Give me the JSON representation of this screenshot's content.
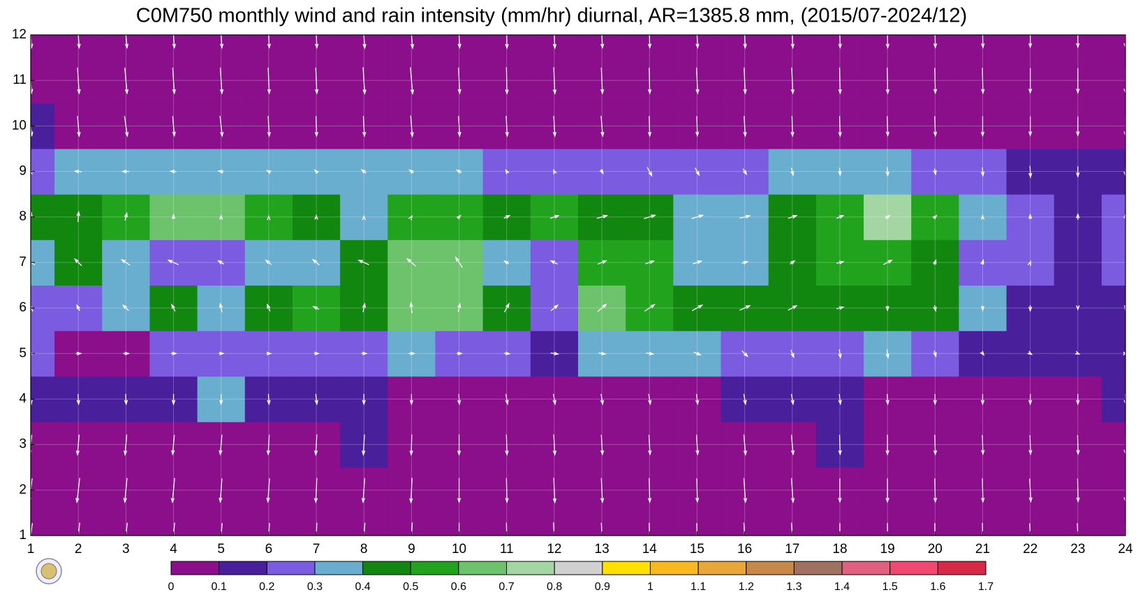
{
  "chart_data": {
    "type": "contour",
    "title": "C0M750 monthly wind and rain intensity (mm/hr) diurnal, AR=1385.8 mm, (2015/07-2024/12)",
    "x": [
      1,
      2,
      3,
      4,
      5,
      6,
      7,
      8,
      9,
      10,
      11,
      12,
      13,
      14,
      15,
      16,
      17,
      18,
      19,
      20,
      21,
      22,
      23,
      24
    ],
    "y": [
      1,
      2,
      3,
      4,
      5,
      6,
      7,
      8,
      9,
      10,
      11,
      12
    ],
    "xlim": [
      1,
      24
    ],
    "ylim": [
      1,
      12
    ],
    "xticks": [
      1,
      2,
      3,
      4,
      5,
      6,
      7,
      8,
      9,
      10,
      11,
      12,
      13,
      14,
      15,
      16,
      17,
      18,
      19,
      20,
      21,
      22,
      23,
      24
    ],
    "yticks": [
      1,
      2,
      3,
      4,
      5,
      6,
      7,
      8,
      9,
      10,
      11,
      12
    ],
    "grid": true,
    "values": [
      [
        0.05,
        0.05,
        0.05,
        0.05,
        0.05,
        0.05,
        0.05,
        0.05,
        0.05,
        0.05,
        0.05,
        0.05,
        0.05,
        0.05,
        0.05,
        0.05,
        0.05,
        0.05,
        0.05,
        0.05,
        0.05,
        0.05,
        0.05,
        0.05
      ],
      [
        0.05,
        0.05,
        0.05,
        0.05,
        0.05,
        0.05,
        0.05,
        0.05,
        0.05,
        0.05,
        0.05,
        0.05,
        0.05,
        0.05,
        0.05,
        0.05,
        0.05,
        0.05,
        0.05,
        0.05,
        0.05,
        0.05,
        0.05,
        0.05
      ],
      [
        0.08,
        0.08,
        0.08,
        0.08,
        0.07,
        0.08,
        0.09,
        0.12,
        0.08,
        0.07,
        0.07,
        0.07,
        0.07,
        0.07,
        0.07,
        0.07,
        0.08,
        0.1,
        0.07,
        0.07,
        0.07,
        0.07,
        0.06,
        0.07
      ],
      [
        0.15,
        0.12,
        0.1,
        0.15,
        0.3,
        0.15,
        0.15,
        0.12,
        0.08,
        0.08,
        0.07,
        0.07,
        0.08,
        0.08,
        0.08,
        0.12,
        0.15,
        0.12,
        0.08,
        0.08,
        0.07,
        0.06,
        0.08,
        0.12
      ],
      [
        0.2,
        0.05,
        0.05,
        0.2,
        0.2,
        0.2,
        0.2,
        0.25,
        0.3,
        0.25,
        0.2,
        0.15,
        0.3,
        0.3,
        0.35,
        0.25,
        0.25,
        0.25,
        0.3,
        0.2,
        0.15,
        0.12,
        0.12,
        0.15
      ],
      [
        0.2,
        0.25,
        0.3,
        0.4,
        0.3,
        0.45,
        0.5,
        0.45,
        0.65,
        0.6,
        0.4,
        0.2,
        0.65,
        0.55,
        0.45,
        0.45,
        0.45,
        0.45,
        0.45,
        0.45,
        0.35,
        0.15,
        0.12,
        0.15
      ],
      [
        0.3,
        0.4,
        0.35,
        0.2,
        0.2,
        0.35,
        0.35,
        0.4,
        0.6,
        0.6,
        0.35,
        0.2,
        0.5,
        0.5,
        0.35,
        0.3,
        0.45,
        0.55,
        0.5,
        0.4,
        0.25,
        0.2,
        0.15,
        0.22
      ],
      [
        0.4,
        0.45,
        0.5,
        0.65,
        0.65,
        0.55,
        0.45,
        0.35,
        0.5,
        0.5,
        0.4,
        0.5,
        0.45,
        0.4,
        0.35,
        0.35,
        0.45,
        0.55,
        0.75,
        0.5,
        0.3,
        0.2,
        0.15,
        0.2
      ],
      [
        0.25,
        0.3,
        0.3,
        0.35,
        0.35,
        0.3,
        0.3,
        0.3,
        0.3,
        0.3,
        0.25,
        0.25,
        0.25,
        0.2,
        0.2,
        0.25,
        0.3,
        0.3,
        0.35,
        0.25,
        0.2,
        0.15,
        0.12,
        0.12
      ],
      [
        0.1,
        0.08,
        0.08,
        0.07,
        0.07,
        0.06,
        0.08,
        0.07,
        0.07,
        0.08,
        0.06,
        0.06,
        0.06,
        0.08,
        0.08,
        0.08,
        0.08,
        0.07,
        0.07,
        0.08,
        0.08,
        0.08,
        0.06,
        0.06
      ],
      [
        0.04,
        0.04,
        0.04,
        0.04,
        0.04,
        0.04,
        0.04,
        0.04,
        0.04,
        0.04,
        0.04,
        0.04,
        0.04,
        0.04,
        0.04,
        0.04,
        0.04,
        0.04,
        0.04,
        0.04,
        0.04,
        0.04,
        0.04,
        0.04
      ],
      [
        0.04,
        0.04,
        0.04,
        0.04,
        0.04,
        0.04,
        0.04,
        0.04,
        0.04,
        0.04,
        0.04,
        0.04,
        0.04,
        0.04,
        0.04,
        0.04,
        0.04,
        0.04,
        0.04,
        0.04,
        0.04,
        0.04,
        0.04,
        0.04
      ]
    ],
    "u": [
      [
        -0.6,
        -0.5,
        -0.5,
        -0.4,
        -0.4,
        -0.3,
        -0.2,
        -0.4,
        -0.3,
        0,
        0.1,
        0.3,
        0.2,
        0.1,
        0.1,
        0.3,
        0.3,
        0,
        0,
        0.1,
        0.1,
        0.2,
        0.2,
        0
      ],
      [
        -0.5,
        -0.5,
        -0.4,
        -0.4,
        -0.3,
        -0.3,
        -0.2,
        -0.3,
        -0.2,
        0,
        0.1,
        0.2,
        0.2,
        0.1,
        0.1,
        0.3,
        0.3,
        0,
        0,
        0.1,
        0.1,
        0.2,
        0.1,
        0
      ],
      [
        -0.4,
        -0.3,
        -0.3,
        -0.3,
        -0.3,
        -0.2,
        -0.2,
        -0.2,
        -0.1,
        0,
        0.1,
        0.2,
        0.2,
        0.2,
        0.2,
        0.3,
        0.3,
        0.1,
        0,
        0.1,
        0.1,
        0.1,
        0.1,
        0
      ],
      [
        0.2,
        0.1,
        0.1,
        0,
        0,
        0.1,
        0.2,
        0,
        0,
        0.1,
        0.3,
        0.3,
        0.3,
        0.3,
        0.2,
        0.3,
        0.3,
        0.2,
        0.1,
        0,
        0,
        0,
        0,
        0.1
      ],
      [
        0.8,
        0.9,
        1,
        0.9,
        0.8,
        0.7,
        0.8,
        0.9,
        1,
        0.9,
        1,
        1.3,
        1.2,
        1.3,
        1.2,
        1,
        0.5,
        0.2,
        0.2,
        0.3,
        0.4,
        0.5,
        0.5,
        0.6
      ],
      [
        -0.8,
        -0.5,
        -1,
        -0.6,
        -0.3,
        -0.5,
        -1,
        0.3,
        -0.2,
        0.3,
        0.8,
        1.2,
        1.5,
        1.8,
        1.8,
        1.8,
        1.5,
        1.2,
        0,
        0.2,
        0,
        0,
        0,
        -0.1
      ],
      [
        -1.5,
        -1.2,
        -1.5,
        -1.8,
        -1,
        -1,
        -1.2,
        -1.8,
        -1.5,
        -1.2,
        -0.8,
        -1.2,
        1.5,
        1.5,
        1.5,
        1,
        0.8,
        1.2,
        1.5,
        0.3,
        0.2,
        0.1,
        0,
        0
      ],
      [
        0.2,
        0.1,
        0.3,
        0,
        0,
        0,
        0,
        0,
        0.2,
        0.5,
        1,
        1.5,
        1.8,
        2,
        2,
        1.8,
        1.5,
        1.2,
        0.8,
        0.5,
        0,
        0,
        0,
        0
      ],
      [
        -0.3,
        -1.2,
        -1.2,
        -1,
        -0.8,
        -0.6,
        -0.5,
        -0.8,
        -0.7,
        -0.8,
        -0.3,
        -0.2,
        0.4,
        0.8,
        0.7,
        0.6,
        0.3,
        0.1,
        0.1,
        0.2,
        0.1,
        0.1,
        0,
        0
      ],
      [
        0.4,
        0.3,
        0.5,
        0.3,
        0.4,
        0.2,
        0.1,
        0.2,
        0.3,
        0.2,
        0.2,
        0.2,
        0.3,
        0.1,
        0.1,
        0.2,
        0.1,
        0.1,
        0.1,
        0.1,
        0,
        0,
        0,
        0
      ],
      [
        0.3,
        0.3,
        0.4,
        0.3,
        0.3,
        0.2,
        0.2,
        0.3,
        0.4,
        0.2,
        0.1,
        0.2,
        0.2,
        0.1,
        0.2,
        0.2,
        0.2,
        0.1,
        0.1,
        0.1,
        0.1,
        0,
        0,
        0
      ],
      [
        0.3,
        0.3,
        0.4,
        0.3,
        0.3,
        0.2,
        0.2,
        0.3,
        0.4,
        0.2,
        0.1,
        0.2,
        0.2,
        0.1,
        0.2,
        0.2,
        0.2,
        0.1,
        0.1,
        0.1,
        0.1,
        0,
        0,
        0
      ]
    ],
    "v": [
      [
        -4.5,
        -4.6,
        -4.6,
        -4.6,
        -4.5,
        -4.5,
        -4.6,
        -4.6,
        -4.7,
        -4.6,
        -4.6,
        -4.7,
        -4.6,
        -4.6,
        -4.5,
        -4.6,
        -4.6,
        -4.5,
        -4.5,
        -4.5,
        -4.5,
        -4.4,
        -4.4,
        -4.3
      ],
      [
        -4.2,
        -4.3,
        -4.3,
        -4.3,
        -4.2,
        -4.2,
        -4.3,
        -4.3,
        -4.4,
        -4.3,
        -4.3,
        -4.4,
        -4.3,
        -4.3,
        -4.2,
        -4.3,
        -4.3,
        -4.2,
        -4.2,
        -4.2,
        -4.2,
        -4.1,
        -4.1,
        -4
      ],
      [
        -3.5,
        -3.6,
        -3.6,
        -3.5,
        -3.5,
        -3.5,
        -3.6,
        -3.6,
        -3.6,
        -3.6,
        -3.6,
        -3.6,
        -3.5,
        -3.5,
        -3.5,
        -3.6,
        -3.5,
        -3.5,
        -3.5,
        -3.5,
        -3.4,
        -3.4,
        -3.4,
        -3.3
      ],
      [
        -1.8,
        -1.8,
        -1.8,
        -1.8,
        -1.8,
        -1.8,
        -1.8,
        -1.8,
        -1.8,
        -1.8,
        -1.8,
        -1.8,
        -1.8,
        -1.8,
        -1.8,
        -1.8,
        -1.8,
        -1.8,
        -1.8,
        -1.8,
        -1.8,
        -1.8,
        -1.8,
        -1.8
      ],
      [
        -0.1,
        0,
        0,
        0,
        0,
        0,
        0,
        0,
        0,
        0,
        -0.1,
        -0.2,
        -0.2,
        -0.2,
        -0.5,
        -1,
        -1.3,
        -1.5,
        -1.5,
        -1,
        -0.5,
        -0.3,
        -0.2,
        0
      ],
      [
        1.2,
        1,
        1,
        1.2,
        1.5,
        1.2,
        0.5,
        1.5,
        1.8,
        1.5,
        1.5,
        1,
        1.3,
        1.2,
        1,
        0.8,
        0.8,
        0.3,
        -0.8,
        -1,
        -0.8,
        -1,
        -0.5,
        -0.5
      ],
      [
        0.8,
        1.2,
        1,
        0.8,
        0.6,
        0.8,
        1,
        0.8,
        1.3,
        1.8,
        0.5,
        0.6,
        0.6,
        0.5,
        0.5,
        0.3,
        0.6,
        0.3,
        0.8,
        0.8,
        0.8,
        0.3,
        0,
        0
      ],
      [
        1.5,
        1.8,
        1.3,
        0.8,
        0.5,
        0.3,
        0.5,
        0.3,
        0.3,
        0.5,
        0.5,
        0.5,
        0.5,
        0.6,
        0.6,
        0.4,
        0.5,
        0.5,
        0.5,
        0.5,
        0.5,
        0.8,
        1,
        1
      ],
      [
        0.2,
        0.1,
        0,
        0.1,
        0.2,
        0.3,
        0.5,
        0.6,
        0.5,
        0.5,
        0.5,
        0.5,
        -0.7,
        -1.5,
        -1.3,
        -1,
        -1.3,
        -1.3,
        -1.5,
        -1,
        -1.5,
        -2,
        -1.8,
        -1.5
      ],
      [
        -3.5,
        -3.6,
        -3.6,
        -3.5,
        -3.6,
        -3.6,
        -3.6,
        -3.6,
        -3.7,
        -3.6,
        -3.6,
        -3.6,
        -3.6,
        -3.6,
        -3.5,
        -3.6,
        -3.6,
        -3.6,
        -3.5,
        -3.5,
        -3.5,
        -3.4,
        -3.4,
        -3.4
      ],
      [
        -4.5,
        -4.6,
        -4.6,
        -4.6,
        -4.6,
        -4.6,
        -4.6,
        -4.7,
        -4.7,
        -4.6,
        -4.7,
        -4.7,
        -4.6,
        -4.6,
        -4.6,
        -4.6,
        -4.6,
        -4.6,
        -4.6,
        -4.5,
        -4.5,
        -4.4,
        -4.4,
        -4.4
      ],
      [
        -4.6,
        -4.6,
        -4.6,
        -4.6,
        -4.6,
        -4.6,
        -4.6,
        -4.7,
        -4.7,
        -4.6,
        -4.7,
        -4.7,
        -4.6,
        -4.6,
        -4.6,
        -4.6,
        -4.6,
        -4.6,
        -4.6,
        -4.5,
        -4.5,
        -4.4,
        -4.4,
        -4.4
      ]
    ],
    "levels": [
      0,
      0.1,
      0.2,
      0.3,
      0.4,
      0.5,
      0.6,
      0.7,
      0.8,
      0.9,
      1,
      1.1,
      1.2,
      1.3,
      1.4,
      1.5,
      1.6,
      1.7
    ],
    "colors": [
      "#8b0f8b",
      "#4a1f9c",
      "#7b5ce0",
      "#6aaecf",
      "#12870f",
      "#22a31e",
      "#6cc36c",
      "#a3d6a3",
      "#d0d0d0",
      "#ffe000",
      "#f8b820",
      "#e8a838",
      "#c88848",
      "#a07060",
      "#e06080",
      "#f04870",
      "#d82848"
    ],
    "arrow_color": "#ffffff"
  }
}
